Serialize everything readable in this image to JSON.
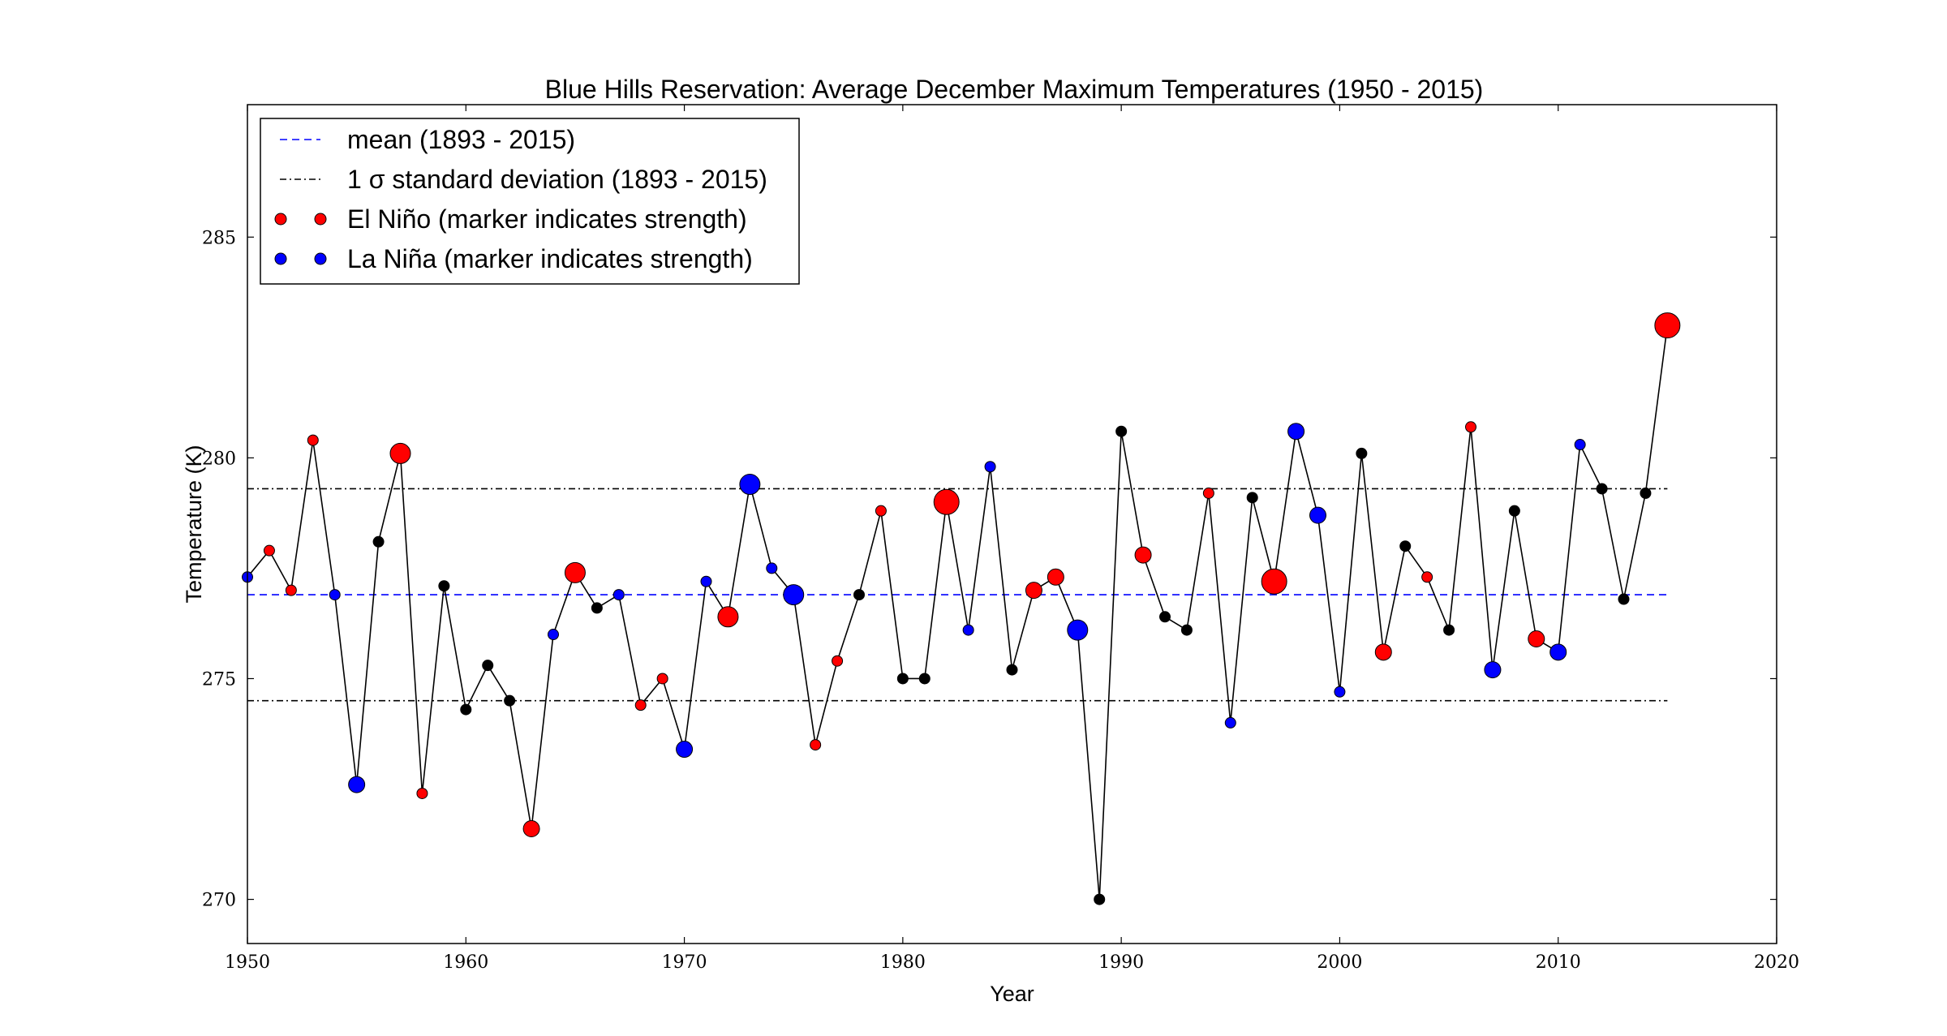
{
  "chart_data": {
    "type": "scatter",
    "title": "Blue Hills Reservation: Average December Maximum Temperatures (1950 - 2015)",
    "xlabel": "Year",
    "ylabel": "Temperature (K)",
    "xlim": [
      1950,
      2020
    ],
    "ylim": [
      269,
      288
    ],
    "xticks": [
      1950,
      1960,
      1970,
      1980,
      1990,
      2000,
      2010,
      2020
    ],
    "yticks": [
      270,
      275,
      280,
      285
    ],
    "grid": false,
    "legend_placement": "top-left",
    "reference_lines": {
      "mean": 276.9,
      "std_upper": 279.3,
      "std_lower": 274.5,
      "x_range": [
        1950,
        2015
      ]
    },
    "legend": [
      {
        "label": "mean (1893 - 2015)",
        "style": "dashed",
        "color": "#0000ff"
      },
      {
        "label": "1 σ standard deviation (1893 - 2015)",
        "style": "dashdot",
        "color": "#000000"
      },
      {
        "label": "El Niño (marker indicates strength)",
        "style": "marker",
        "color": "#ff0000"
      },
      {
        "label": "La Niña (marker indicates strength)",
        "style": "marker",
        "color": "#0000ff"
      }
    ],
    "colors": {
      "neutral": "#000000",
      "el_nino": "#ff0000",
      "la_nina": "#0000ff",
      "line": "#000000"
    },
    "points": [
      {
        "x": 1950,
        "y": 277.3,
        "phase": "la_nina",
        "strength": 1
      },
      {
        "x": 1951,
        "y": 277.9,
        "phase": "el_nino",
        "strength": 1
      },
      {
        "x": 1952,
        "y": 277.0,
        "phase": "el_nino",
        "strength": 1
      },
      {
        "x": 1953,
        "y": 280.4,
        "phase": "el_nino",
        "strength": 1
      },
      {
        "x": 1954,
        "y": 276.9,
        "phase": "la_nina",
        "strength": 1
      },
      {
        "x": 1955,
        "y": 272.6,
        "phase": "la_nina",
        "strength": 2
      },
      {
        "x": 1956,
        "y": 278.1,
        "phase": "neutral",
        "strength": 1
      },
      {
        "x": 1957,
        "y": 280.1,
        "phase": "el_nino",
        "strength": 3
      },
      {
        "x": 1958,
        "y": 272.4,
        "phase": "el_nino",
        "strength": 1
      },
      {
        "x": 1959,
        "y": 277.1,
        "phase": "neutral",
        "strength": 1
      },
      {
        "x": 1960,
        "y": 274.3,
        "phase": "neutral",
        "strength": 1
      },
      {
        "x": 1961,
        "y": 275.3,
        "phase": "neutral",
        "strength": 1
      },
      {
        "x": 1962,
        "y": 274.5,
        "phase": "neutral",
        "strength": 1
      },
      {
        "x": 1963,
        "y": 271.6,
        "phase": "el_nino",
        "strength": 2
      },
      {
        "x": 1964,
        "y": 276.0,
        "phase": "la_nina",
        "strength": 1
      },
      {
        "x": 1965,
        "y": 277.4,
        "phase": "el_nino",
        "strength": 3
      },
      {
        "x": 1966,
        "y": 276.6,
        "phase": "neutral",
        "strength": 1
      },
      {
        "x": 1967,
        "y": 276.9,
        "phase": "la_nina",
        "strength": 1
      },
      {
        "x": 1968,
        "y": 274.4,
        "phase": "el_nino",
        "strength": 1
      },
      {
        "x": 1969,
        "y": 275.0,
        "phase": "el_nino",
        "strength": 1
      },
      {
        "x": 1970,
        "y": 273.4,
        "phase": "la_nina",
        "strength": 2
      },
      {
        "x": 1971,
        "y": 277.2,
        "phase": "la_nina",
        "strength": 1
      },
      {
        "x": 1972,
        "y": 276.4,
        "phase": "el_nino",
        "strength": 3
      },
      {
        "x": 1973,
        "y": 279.4,
        "phase": "la_nina",
        "strength": 3
      },
      {
        "x": 1974,
        "y": 277.5,
        "phase": "la_nina",
        "strength": 1
      },
      {
        "x": 1975,
        "y": 276.9,
        "phase": "la_nina",
        "strength": 3
      },
      {
        "x": 1976,
        "y": 273.5,
        "phase": "el_nino",
        "strength": 1
      },
      {
        "x": 1977,
        "y": 275.4,
        "phase": "el_nino",
        "strength": 1
      },
      {
        "x": 1978,
        "y": 276.9,
        "phase": "neutral",
        "strength": 1
      },
      {
        "x": 1979,
        "y": 278.8,
        "phase": "el_nino",
        "strength": 1
      },
      {
        "x": 1980,
        "y": 275.0,
        "phase": "neutral",
        "strength": 1
      },
      {
        "x": 1981,
        "y": 275.0,
        "phase": "neutral",
        "strength": 1
      },
      {
        "x": 1982,
        "y": 279.0,
        "phase": "el_nino",
        "strength": 4
      },
      {
        "x": 1983,
        "y": 276.1,
        "phase": "la_nina",
        "strength": 1
      },
      {
        "x": 1984,
        "y": 279.8,
        "phase": "la_nina",
        "strength": 1
      },
      {
        "x": 1985,
        "y": 275.2,
        "phase": "neutral",
        "strength": 1
      },
      {
        "x": 1986,
        "y": 277.0,
        "phase": "el_nino",
        "strength": 2
      },
      {
        "x": 1987,
        "y": 277.3,
        "phase": "el_nino",
        "strength": 2
      },
      {
        "x": 1988,
        "y": 276.1,
        "phase": "la_nina",
        "strength": 3
      },
      {
        "x": 1989,
        "y": 270.0,
        "phase": "neutral",
        "strength": 1
      },
      {
        "x": 1990,
        "y": 280.6,
        "phase": "neutral",
        "strength": 1
      },
      {
        "x": 1991,
        "y": 277.8,
        "phase": "el_nino",
        "strength": 2
      },
      {
        "x": 1992,
        "y": 276.4,
        "phase": "neutral",
        "strength": 1
      },
      {
        "x": 1993,
        "y": 276.1,
        "phase": "neutral",
        "strength": 1
      },
      {
        "x": 1994,
        "y": 279.2,
        "phase": "el_nino",
        "strength": 1
      },
      {
        "x": 1995,
        "y": 274.0,
        "phase": "la_nina",
        "strength": 1
      },
      {
        "x": 1996,
        "y": 279.1,
        "phase": "neutral",
        "strength": 1
      },
      {
        "x": 1997,
        "y": 277.2,
        "phase": "el_nino",
        "strength": 4
      },
      {
        "x": 1998,
        "y": 280.6,
        "phase": "la_nina",
        "strength": 2
      },
      {
        "x": 1999,
        "y": 278.7,
        "phase": "la_nina",
        "strength": 2
      },
      {
        "x": 2000,
        "y": 274.7,
        "phase": "la_nina",
        "strength": 1
      },
      {
        "x": 2001,
        "y": 280.1,
        "phase": "neutral",
        "strength": 1
      },
      {
        "x": 2002,
        "y": 275.6,
        "phase": "el_nino",
        "strength": 2
      },
      {
        "x": 2003,
        "y": 278.0,
        "phase": "neutral",
        "strength": 1
      },
      {
        "x": 2004,
        "y": 277.3,
        "phase": "el_nino",
        "strength": 1
      },
      {
        "x": 2005,
        "y": 276.1,
        "phase": "neutral",
        "strength": 1
      },
      {
        "x": 2006,
        "y": 280.7,
        "phase": "el_nino",
        "strength": 1
      },
      {
        "x": 2007,
        "y": 275.2,
        "phase": "la_nina",
        "strength": 2
      },
      {
        "x": 2008,
        "y": 278.8,
        "phase": "neutral",
        "strength": 1
      },
      {
        "x": 2009,
        "y": 275.9,
        "phase": "el_nino",
        "strength": 2
      },
      {
        "x": 2010,
        "y": 275.6,
        "phase": "la_nina",
        "strength": 2
      },
      {
        "x": 2011,
        "y": 280.3,
        "phase": "la_nina",
        "strength": 1
      },
      {
        "x": 2012,
        "y": 279.3,
        "phase": "neutral",
        "strength": 1
      },
      {
        "x": 2013,
        "y": 276.8,
        "phase": "neutral",
        "strength": 1
      },
      {
        "x": 2014,
        "y": 279.2,
        "phase": "neutral",
        "strength": 1
      },
      {
        "x": 2015,
        "y": 283.0,
        "phase": "el_nino",
        "strength": 4
      }
    ]
  }
}
